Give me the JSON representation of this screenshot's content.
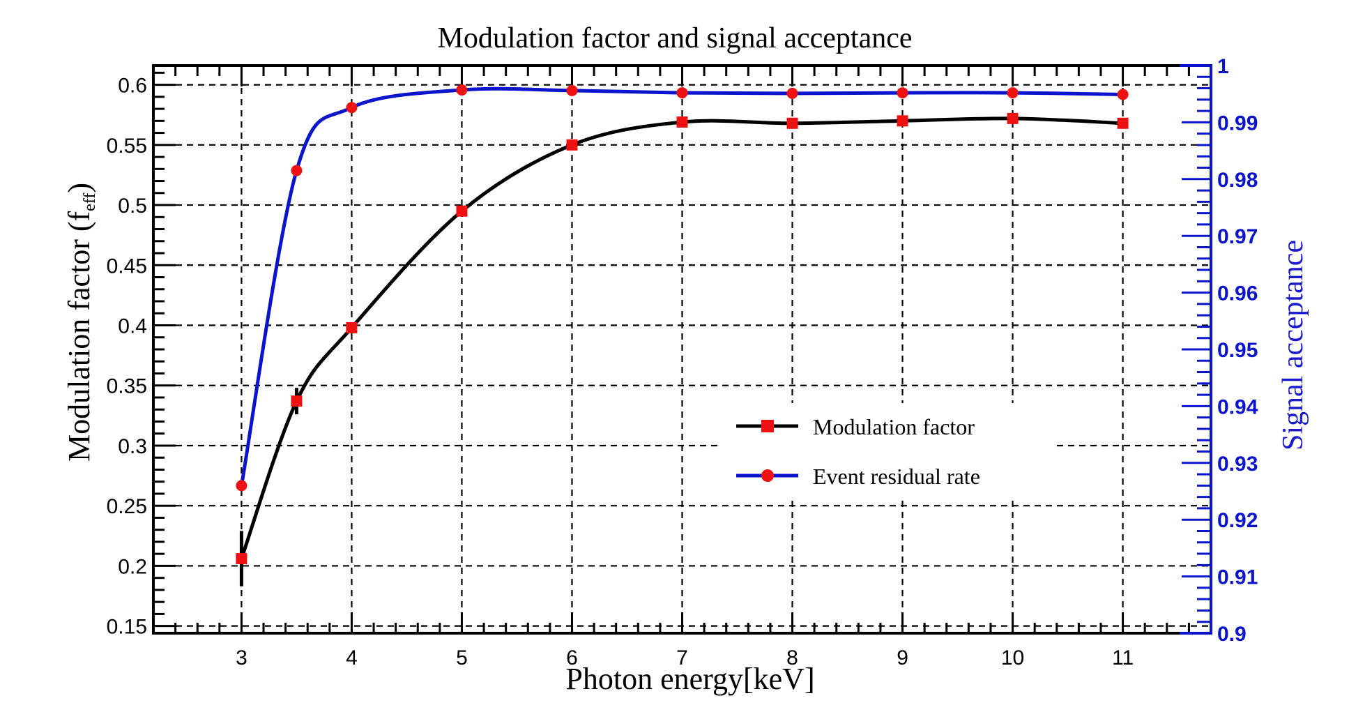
{
  "chart_data": {
    "type": "line",
    "title": "Modulation factor and signal acceptance",
    "xlabel": "Photon energy[keV]",
    "ylabel": "Modulation factor (f",
    "ylabel_subscript": "eff",
    "ylabel_close": ")",
    "y2label": "Signal acceptance",
    "xlim": [
      2.2,
      11.8
    ],
    "ylim": [
      0.144,
      0.616
    ],
    "y2lim": [
      0.9,
      1.0
    ],
    "grid": true,
    "legend_position": "center-right",
    "x_ticks": [
      3,
      4,
      5,
      6,
      7,
      8,
      9,
      10,
      11
    ],
    "x_tick_labels": [
      "3",
      "4",
      "5",
      "6",
      "7",
      "8",
      "9",
      "10",
      "11"
    ],
    "y_ticks": [
      0.15,
      0.2,
      0.25,
      0.3,
      0.35,
      0.4,
      0.45,
      0.5,
      0.55,
      0.6
    ],
    "y_tick_labels": [
      "0.15",
      "0.2",
      "0.25",
      "0.3",
      "0.35",
      "0.4",
      "0.45",
      "0.5",
      "0.55",
      "0.6"
    ],
    "y2_ticks": [
      0.9,
      0.91,
      0.92,
      0.93,
      0.94,
      0.95,
      0.96,
      0.97,
      0.98,
      0.99,
      1.0
    ],
    "y2_tick_labels": [
      "0.9",
      "0.91",
      "0.92",
      "0.93",
      "0.94",
      "0.95",
      "0.96",
      "0.97",
      "0.98",
      "0.99",
      "1"
    ],
    "x": [
      3,
      3.5,
      4,
      5,
      6,
      7,
      8,
      9,
      10,
      11
    ],
    "series": [
      {
        "name": "Modulation factor",
        "axis": "left",
        "line_color": "#000000",
        "marker": "square",
        "marker_color": "#ee1111",
        "values": [
          0.206,
          0.337,
          0.398,
          0.495,
          0.55,
          0.569,
          0.568,
          0.57,
          0.572,
          0.568
        ],
        "error_low": [
          0.183,
          0.326,
          0.396,
          0.494,
          0.549,
          0.568,
          0.567,
          0.569,
          0.571,
          0.567
        ],
        "error_high": [
          0.229,
          0.348,
          0.4,
          0.496,
          0.551,
          0.57,
          0.569,
          0.571,
          0.573,
          0.569
        ]
      },
      {
        "name": "Event residual rate",
        "axis": "right",
        "line_color": "#0a14cc",
        "marker": "circle",
        "marker_color": "#ee1111",
        "values": [
          0.926,
          0.9815,
          0.9926,
          0.9957,
          0.9956,
          0.9952,
          0.9951,
          0.9952,
          0.9952,
          0.9949
        ]
      }
    ],
    "colors": {
      "axis": "#000000",
      "right_axis": "#0a14cc",
      "grid": "#000000",
      "background": "#ffffff"
    }
  }
}
